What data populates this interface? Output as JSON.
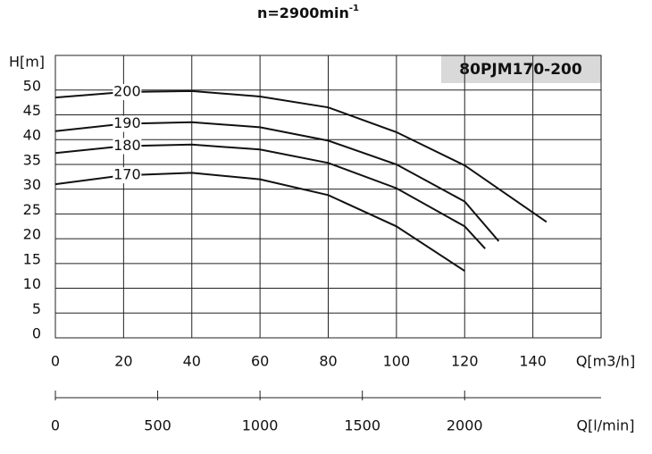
{
  "chart_data": {
    "type": "line",
    "title": "n=2900min",
    "title_superscript": "-1",
    "model": "80PJM170-200",
    "y_label": "H[m]",
    "x_label": "Q[m3/h]",
    "x2_label": "Q[l/min]",
    "xlim": [
      0,
      160
    ],
    "xticks": [
      0,
      20,
      40,
      60,
      80,
      100,
      120,
      140
    ],
    "ylim": [
      0,
      57
    ],
    "yticks": [
      0,
      5,
      10,
      15,
      20,
      25,
      30,
      35,
      40,
      45,
      50
    ],
    "x2lim": [
      0,
      2666.67
    ],
    "x2ticks": [
      0,
      500,
      1000,
      1500,
      2000
    ],
    "grid": true,
    "series": [
      {
        "name": "200",
        "color": "#111111",
        "x": [
          0,
          20,
          40,
          60,
          80,
          100,
          120,
          144
        ],
        "values": [
          48.5,
          49.6,
          49.8,
          48.7,
          46.5,
          41.5,
          34.8,
          23.4
        ]
      },
      {
        "name": "190",
        "color": "#111111",
        "x": [
          0,
          20,
          40,
          60,
          80,
          100,
          120,
          130
        ],
        "values": [
          41.7,
          43.2,
          43.5,
          42.5,
          39.8,
          35,
          27.5,
          19.5
        ]
      },
      {
        "name": "180",
        "color": "#111111",
        "x": [
          0,
          20,
          40,
          60,
          80,
          100,
          120,
          126
        ],
        "values": [
          37.3,
          38.7,
          39,
          38,
          35.3,
          30.2,
          22.5,
          18
        ]
      },
      {
        "name": "170",
        "color": "#111111",
        "x": [
          0,
          20,
          40,
          60,
          80,
          100,
          120
        ],
        "values": [
          31,
          32.8,
          33.3,
          32,
          28.8,
          22.5,
          13.5
        ]
      }
    ]
  }
}
